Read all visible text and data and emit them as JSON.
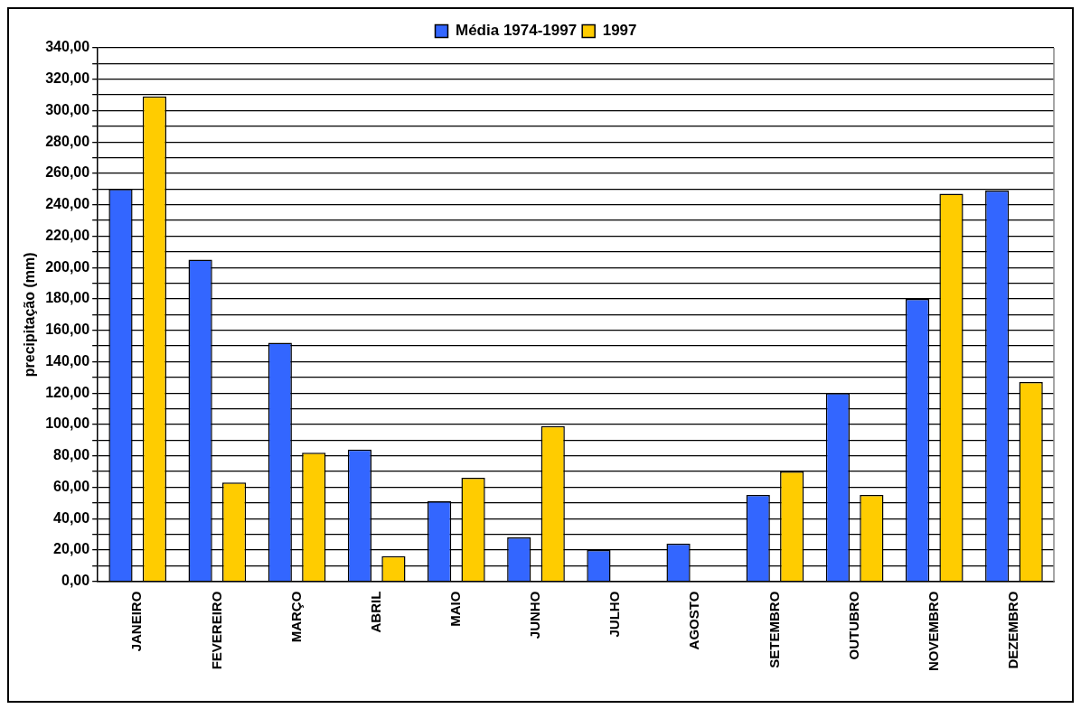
{
  "chart_data": {
    "type": "bar",
    "ylabel": "precipitação (mm)",
    "categories": [
      "JANEIRO",
      "FEVEREIRO",
      "MARÇO",
      "ABRIL",
      "MAIO",
      "JUNHO",
      "JULHO",
      "AGOSTO",
      "SETEMBRO",
      "OUTUBRO",
      "NOVEMBRO",
      "DEZEMBRO"
    ],
    "series": [
      {
        "name": "Média 1974-1997",
        "color": "#3366ff",
        "values": [
          250,
          205,
          152,
          84,
          51,
          28,
          20,
          24,
          55,
          120,
          180,
          249
        ]
      },
      {
        "name": "1997",
        "color": "#ffcc00",
        "values": [
          309,
          63,
          82,
          16,
          66,
          99,
          0,
          0,
          70,
          55,
          247,
          127
        ]
      }
    ],
    "ylim": [
      0,
      340
    ],
    "yticks": [
      {
        "value": 0,
        "label": "0,00"
      },
      {
        "value": 10,
        "label": null
      },
      {
        "value": 20,
        "label": "20,00"
      },
      {
        "value": 30,
        "label": null
      },
      {
        "value": 40,
        "label": "40,00"
      },
      {
        "value": 50,
        "label": null
      },
      {
        "value": 60,
        "label": "60,00"
      },
      {
        "value": 70,
        "label": null
      },
      {
        "value": 80,
        "label": "80,00"
      },
      {
        "value": 90,
        "label": null
      },
      {
        "value": 100,
        "label": "100,00"
      },
      {
        "value": 110,
        "label": null
      },
      {
        "value": 120,
        "label": "120,00"
      },
      {
        "value": 130,
        "label": null
      },
      {
        "value": 140,
        "label": "140,00"
      },
      {
        "value": 150,
        "label": null
      },
      {
        "value": 160,
        "label": "160,00"
      },
      {
        "value": 170,
        "label": null
      },
      {
        "value": 180,
        "label": "180,00"
      },
      {
        "value": 190,
        "label": null
      },
      {
        "value": 200,
        "label": "200,00"
      },
      {
        "value": 210,
        "label": null
      },
      {
        "value": 220,
        "label": "220,00"
      },
      {
        "value": 230,
        "label": null
      },
      {
        "value": 240,
        "label": "240,00"
      },
      {
        "value": 250,
        "label": null
      },
      {
        "value": 260,
        "label": "260,00"
      },
      {
        "value": 270,
        "label": null
      },
      {
        "value": 280,
        "label": "280,00"
      },
      {
        "value": 290,
        "label": null
      },
      {
        "value": 300,
        "label": "300,00"
      },
      {
        "value": 310,
        "label": null
      },
      {
        "value": 320,
        "label": "320,00"
      },
      {
        "value": 330,
        "label": null
      },
      {
        "value": 340,
        "label": "340,00"
      }
    ],
    "grid": "y",
    "legend": "top"
  }
}
